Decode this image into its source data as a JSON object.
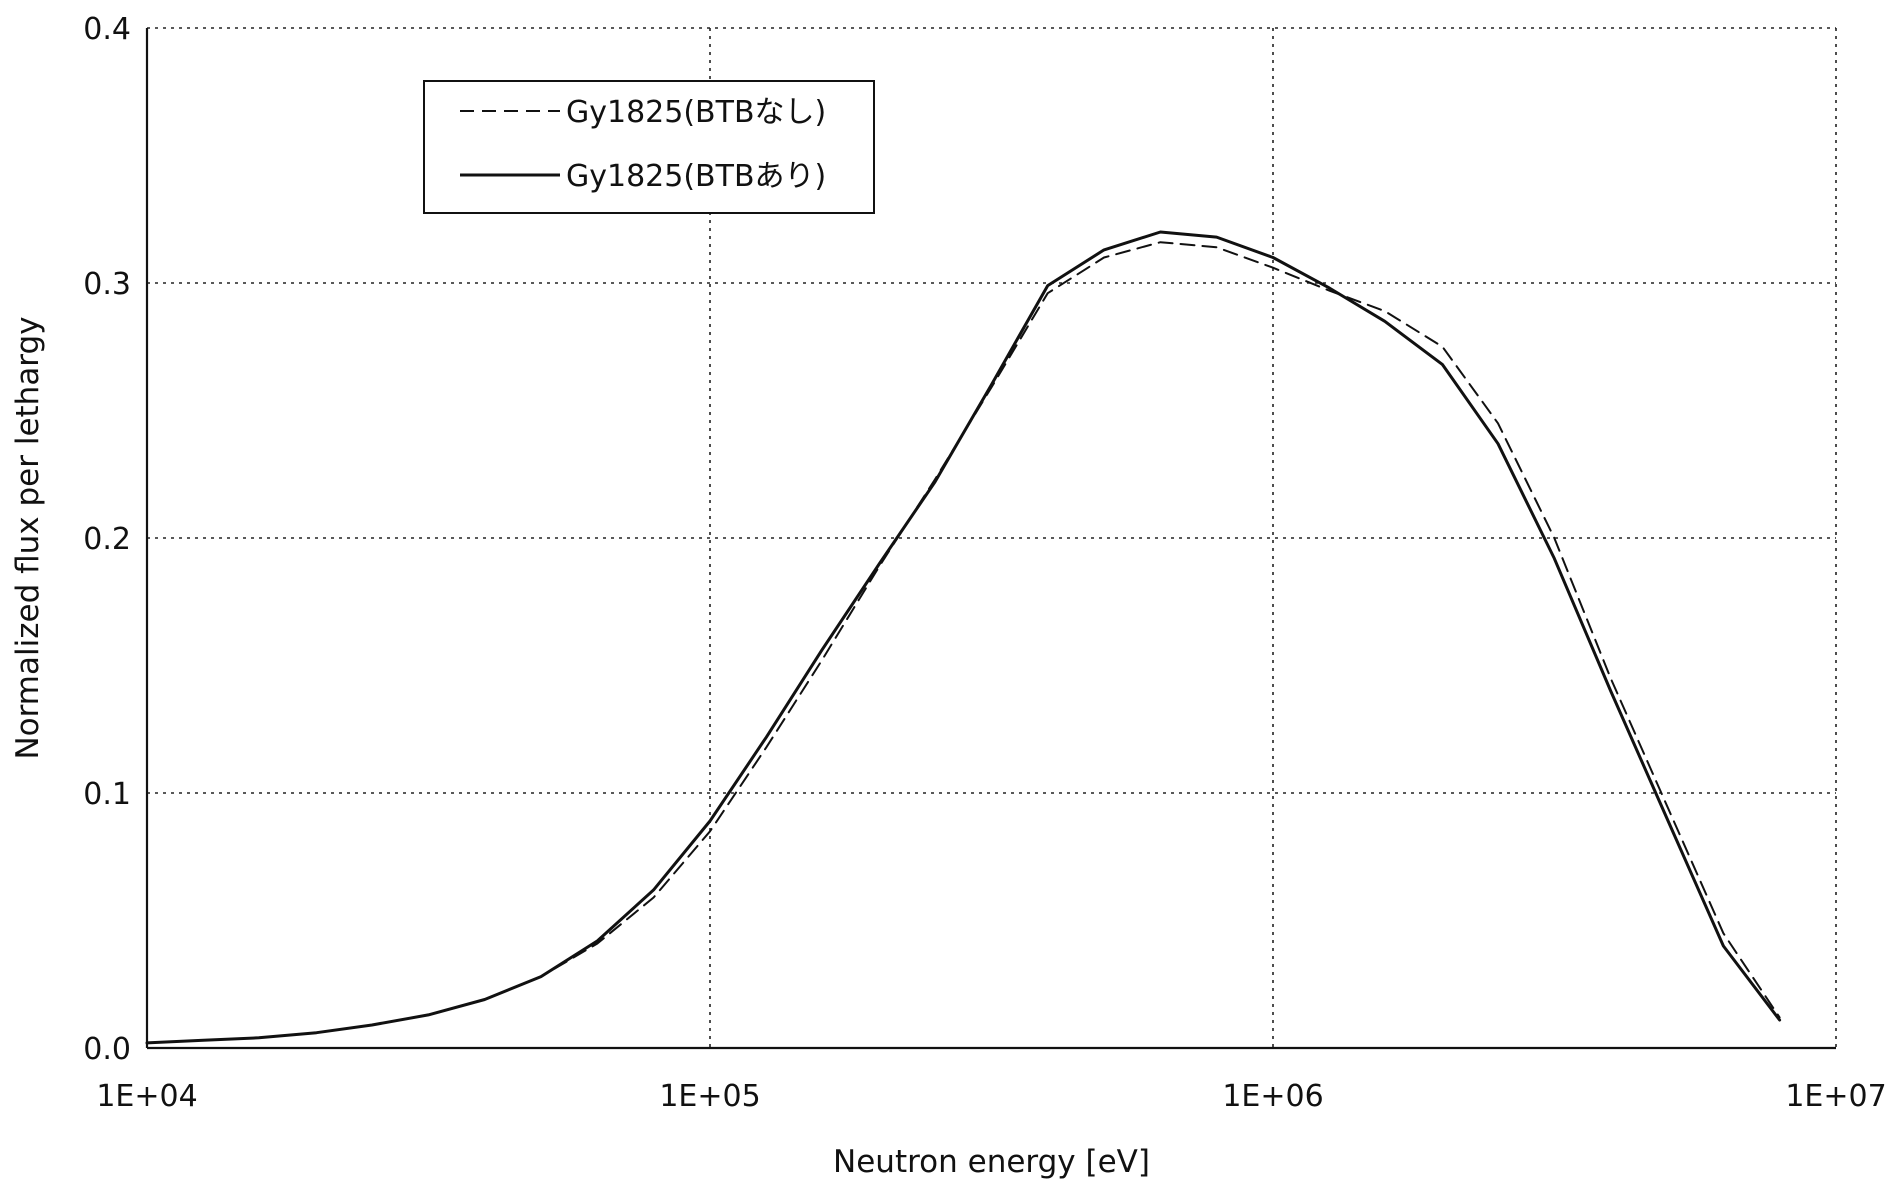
{
  "chart_data": {
    "type": "line",
    "title": "",
    "xlabel": "Neutron energy [eV]",
    "ylabel": "Normalized flux per lethargy",
    "xscale": "log",
    "xlim": [
      10000,
      10000000
    ],
    "ylim": [
      0,
      0.4
    ],
    "grid": true,
    "legend_position": "top-left",
    "x_ticks": [
      {
        "value": 10000,
        "label": "1E+04"
      },
      {
        "value": 100000,
        "label": "1E+05"
      },
      {
        "value": 1000000,
        "label": "1E+06"
      },
      {
        "value": 10000000,
        "label": "1E+07"
      }
    ],
    "y_ticks": [
      {
        "value": 0,
        "label": "0.0"
      },
      {
        "value": 0.1,
        "label": "0.1"
      },
      {
        "value": 0.2,
        "label": "0.2"
      },
      {
        "value": 0.3,
        "label": "0.3"
      },
      {
        "value": 0.4,
        "label": "0.4"
      }
    ],
    "series": [
      {
        "name": "Gy1825(BTBなし)",
        "style": "dashed",
        "color": "#111111",
        "x": [
          10000,
          12600,
          15800,
          20000,
          25100,
          31600,
          39800,
          50100,
          63100,
          79400,
          100000,
          126000,
          158000,
          200000,
          251000,
          316000,
          398000,
          501000,
          631000,
          794000,
          1000000,
          1260000,
          1580000,
          2000000,
          2510000,
          3160000,
          3980000,
          5010000,
          6310000,
          7940000
        ],
        "values": [
          0.002,
          0.003,
          0.004,
          0.006,
          0.009,
          0.013,
          0.019,
          0.028,
          0.041,
          0.059,
          0.085,
          0.118,
          0.152,
          0.189,
          0.223,
          0.259,
          0.296,
          0.31,
          0.316,
          0.314,
          0.306,
          0.297,
          0.289,
          0.275,
          0.245,
          0.2,
          0.145,
          0.095,
          0.045,
          0.012
        ]
      },
      {
        "name": "Gy1825(BTBあり)",
        "style": "solid",
        "color": "#111111",
        "x": [
          10000,
          12600,
          15800,
          20000,
          25100,
          31600,
          39800,
          50100,
          63100,
          79400,
          100000,
          126000,
          158000,
          200000,
          251000,
          316000,
          398000,
          501000,
          631000,
          794000,
          1000000,
          1260000,
          1580000,
          2000000,
          2510000,
          3160000,
          3980000,
          5010000,
          6310000,
          7940000
        ],
        "values": [
          0.002,
          0.003,
          0.004,
          0.006,
          0.009,
          0.013,
          0.019,
          0.028,
          0.042,
          0.062,
          0.089,
          0.122,
          0.156,
          0.19,
          0.222,
          0.26,
          0.299,
          0.313,
          0.32,
          0.318,
          0.31,
          0.298,
          0.285,
          0.268,
          0.237,
          0.192,
          0.14,
          0.09,
          0.04,
          0.011
        ]
      }
    ]
  }
}
